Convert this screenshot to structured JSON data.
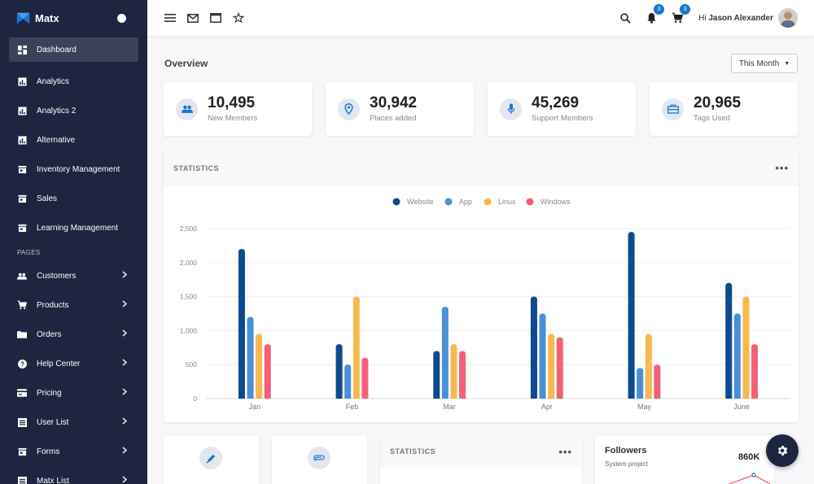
{
  "brand": {
    "name": "Matx"
  },
  "sidebar": {
    "items": [
      {
        "label": "Dashboard",
        "icon": "dashboard-icon",
        "active": true
      },
      {
        "label": "Analytics",
        "icon": "analytics-icon"
      },
      {
        "label": "Analytics 2",
        "icon": "analytics-icon"
      },
      {
        "label": "Alternative",
        "icon": "analytics-icon"
      },
      {
        "label": "Inventory Management",
        "icon": "store-icon"
      },
      {
        "label": "Sales",
        "icon": "store-icon"
      },
      {
        "label": "Learning Management",
        "icon": "store-icon"
      }
    ],
    "section_label": "PAGES",
    "pages": [
      {
        "label": "Customers",
        "icon": "people-icon"
      },
      {
        "label": "Products",
        "icon": "cart-icon"
      },
      {
        "label": "Orders",
        "icon": "folder-icon"
      },
      {
        "label": "Help Center",
        "icon": "help-icon"
      },
      {
        "label": "Pricing",
        "icon": "pricing-icon"
      },
      {
        "label": "User List",
        "icon": "list-icon"
      },
      {
        "label": "Forms",
        "icon": "store-icon"
      },
      {
        "label": "Matx List",
        "icon": "list-icon"
      }
    ]
  },
  "topbar": {
    "notifications_count": "3",
    "cart_count": "3",
    "greeting": "Hi",
    "user_name": "Jason Alexander"
  },
  "overview": {
    "title": "Overview",
    "period_label": "This Month"
  },
  "stats": [
    {
      "value": "10,495",
      "label": "New Members",
      "icon": "group-icon"
    },
    {
      "value": "30,942",
      "label": "Places added",
      "icon": "location-icon"
    },
    {
      "value": "45,269",
      "label": "Support Members",
      "icon": "mic-icon"
    },
    {
      "value": "20,965",
      "label": "Tags Used",
      "icon": "tag-icon"
    }
  ],
  "statistics_card": {
    "title": "STATISTICS"
  },
  "chart_data": {
    "type": "bar",
    "categories": [
      "Jan",
      "Feb",
      "Mar",
      "Apr",
      "May",
      "June"
    ],
    "series": [
      {
        "name": "Website",
        "color": "#0e4a8f",
        "values": [
          2200,
          800,
          700,
          1500,
          2450,
          1700
        ]
      },
      {
        "name": "App",
        "color": "#4a90d9",
        "values": [
          1200,
          500,
          1350,
          1250,
          450,
          1250
        ]
      },
      {
        "name": "Linux",
        "color": "#f6b94f",
        "values": [
          950,
          1500,
          800,
          950,
          950,
          1500
        ]
      },
      {
        "name": "Windows",
        "color": "#f55f78",
        "values": [
          800,
          600,
          700,
          900,
          500,
          800
        ]
      }
    ],
    "yticks": [
      "0",
      "500",
      "1,000",
      "1,500",
      "2,000",
      "2,500"
    ],
    "ylim": [
      0,
      2500
    ],
    "legend": "top-center",
    "grid": true
  },
  "bottom": {
    "statistics_title": "STATISTICS",
    "followers_title": "Followers",
    "followers_sub": "System project",
    "followers_value": "860K"
  }
}
